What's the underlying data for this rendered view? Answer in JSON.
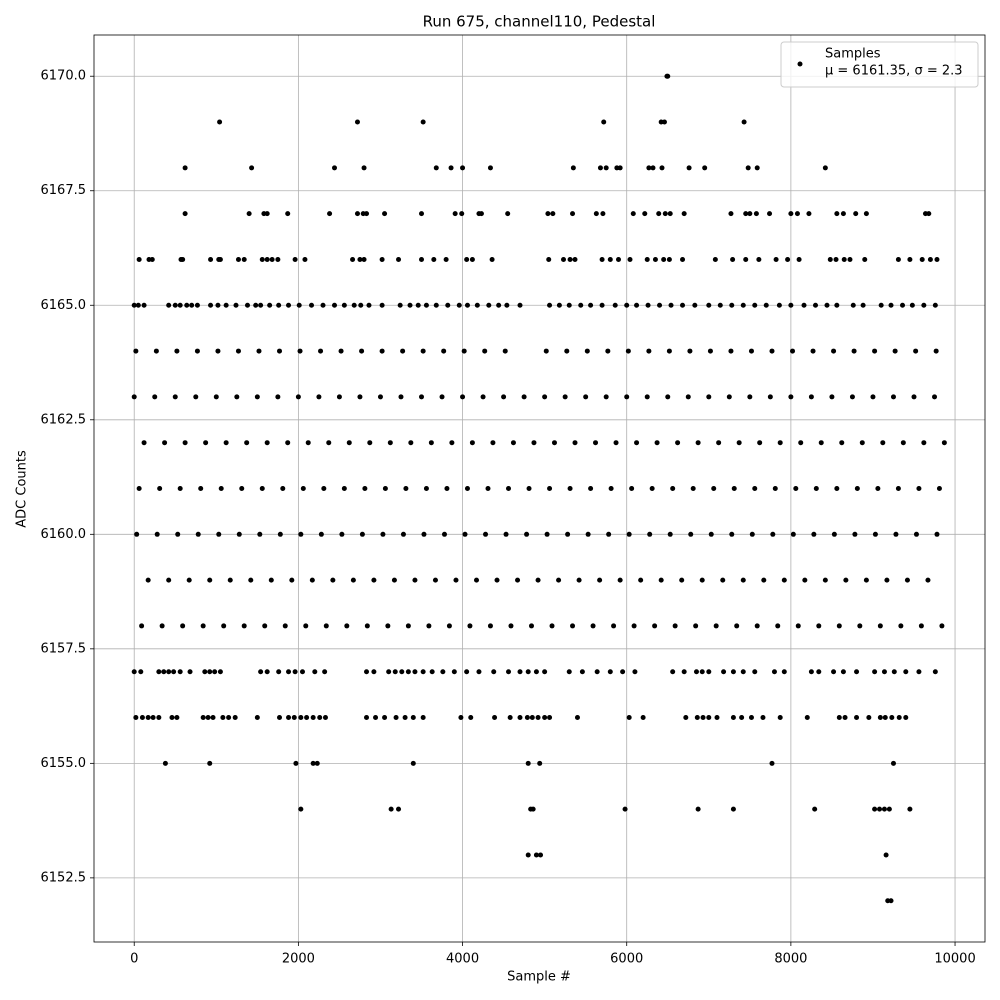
{
  "chart_data": {
    "type": "scatter",
    "title": "Run 675, channel110, Pedestal",
    "xlabel": "Sample #",
    "ylabel": "ADC Counts",
    "annotation": "μ = 6161.35, σ = 2.3",
    "legend": "upper right",
    "grid": true,
    "xlim": [
      -490,
      10365
    ],
    "xticks": [
      0,
      2000,
      4000,
      6000,
      8000,
      10000
    ],
    "ylim": [
      6151.1,
      6170.9
    ],
    "yticks": [
      6152.5,
      {
        "value": 6155,
        "label": "6155.0"
      },
      6157.5,
      {
        "value": 6160,
        "label": "6160.0"
      },
      6162.5,
      {
        "value": 6165,
        "label": "6165.0"
      },
      6167.5,
      {
        "value": 6170,
        "label": "6170.0"
      }
    ],
    "x": [
      6490,
      6500,
      1040,
      2720,
      3520,
      5720,
      6420,
      6460,
      7430,
      620,
      1430,
      2440,
      2800,
      3680,
      3860,
      4000,
      4340,
      5350,
      5680,
      5750,
      5880,
      5920,
      6270,
      6320,
      6430,
      6760,
      6950,
      7480,
      7590,
      8420,
      620,
      1400,
      1580,
      1620,
      1870,
      2380,
      2720,
      2790,
      2830,
      3050,
      3500,
      3910,
      3990,
      4200,
      4230,
      4550,
      5040,
      5100,
      5340,
      5630,
      5710,
      6080,
      6220,
      6390,
      6470,
      6530,
      6700,
      7270,
      7450,
      7500,
      7580,
      7740,
      8000,
      8080,
      8220,
      8560,
      8640,
      8790,
      8920,
      9640,
      9680,
      60,
      180,
      220,
      570,
      590,
      930,
      1030,
      1050,
      1270,
      1340,
      1560,
      1620,
      1680,
      1750,
      1960,
      2080,
      2660,
      2750,
      2800,
      3020,
      3220,
      3500,
      3650,
      3800,
      4050,
      4120,
      4360,
      5050,
      5230,
      5310,
      5370,
      5700,
      5800,
      5900,
      6040,
      6250,
      6350,
      6450,
      6520,
      6680,
      7080,
      7290,
      7450,
      7610,
      7820,
      7960,
      8100,
      8480,
      8550,
      8650,
      8720,
      8900,
      9310,
      9450,
      9600,
      9700,
      9780,
      0,
      50,
      120,
      420,
      500,
      560,
      640,
      700,
      770,
      930,
      1020,
      1120,
      1240,
      1380,
      1480,
      1540,
      1650,
      1760,
      1880,
      2010,
      2160,
      2300,
      2440,
      2560,
      2680,
      2760,
      2860,
      3020,
      3240,
      3360,
      3460,
      3560,
      3680,
      3820,
      3960,
      4060,
      4180,
      4320,
      4440,
      4540,
      4700,
      5060,
      5180,
      5300,
      5440,
      5560,
      5700,
      5860,
      6000,
      6120,
      6260,
      6400,
      6540,
      6680,
      6830,
      7000,
      7140,
      7280,
      7420,
      7560,
      7700,
      7860,
      8000,
      8160,
      8300,
      8440,
      8560,
      8760,
      8880,
      9100,
      9220,
      9360,
      9480,
      9620,
      9760,
      20,
      270,
      520,
      770,
      1020,
      1270,
      1520,
      1770,
      2020,
      2270,
      2520,
      2770,
      3020,
      3270,
      3520,
      3770,
      4020,
      4270,
      4520,
      5020,
      5270,
      5520,
      5770,
      6020,
      6270,
      6520,
      6770,
      7020,
      7270,
      7520,
      7770,
      8020,
      8270,
      8520,
      8770,
      9020,
      9270,
      9520,
      9770,
      0,
      250,
      500,
      750,
      1000,
      1250,
      1500,
      1750,
      2000,
      2250,
      2500,
      2750,
      3000,
      3250,
      3500,
      3750,
      4000,
      4250,
      4500,
      4750,
      5000,
      5250,
      5500,
      5750,
      6000,
      6250,
      6500,
      6750,
      7000,
      7250,
      7500,
      7750,
      8000,
      8250,
      8500,
      8750,
      9000,
      9250,
      9500,
      9750,
      120,
      370,
      620,
      870,
      1120,
      1370,
      1620,
      1870,
      2120,
      2370,
      2620,
      2870,
      3120,
      3370,
      3620,
      3870,
      4120,
      4370,
      4620,
      4870,
      5120,
      5370,
      5620,
      5870,
      6120,
      6370,
      6620,
      6870,
      7120,
      7370,
      7620,
      7870,
      8120,
      8370,
      8620,
      8870,
      9120,
      9370,
      9620,
      9870,
      60,
      310,
      560,
      810,
      1060,
      1310,
      1560,
      1810,
      2060,
      2310,
      2560,
      2810,
      3060,
      3310,
      3560,
      3810,
      4060,
      4310,
      4560,
      4810,
      5060,
      5310,
      5560,
      5810,
      6060,
      6310,
      6560,
      6810,
      7060,
      7310,
      7560,
      7810,
      8060,
      8310,
      8560,
      8810,
      9060,
      9310,
      9560,
      9810,
      30,
      280,
      530,
      780,
      1030,
      1280,
      1530,
      1780,
      2030,
      2280,
      2530,
      2780,
      3030,
      3280,
      3530,
      3780,
      4030,
      4280,
      4530,
      4780,
      5030,
      5280,
      5530,
      5780,
      6030,
      6280,
      6530,
      6780,
      7030,
      7280,
      7530,
      7780,
      8030,
      8280,
      8530,
      8780,
      9030,
      9280,
      9530,
      9780,
      170,
      420,
      670,
      920,
      1170,
      1420,
      1670,
      1920,
      2170,
      2420,
      2670,
      2920,
      3170,
      3420,
      3670,
      3920,
      4170,
      4420,
      4670,
      4920,
      5170,
      5420,
      5670,
      5920,
      6170,
      6420,
      6670,
      6920,
      7170,
      7420,
      7670,
      7920,
      8170,
      8420,
      8670,
      8920,
      9170,
      9420,
      9670,
      90,
      340,
      590,
      840,
      1090,
      1340,
      1590,
      1840,
      2090,
      2340,
      2590,
      2840,
      3090,
      3340,
      3590,
      3840,
      4090,
      4340,
      4590,
      4840,
      5090,
      5340,
      5590,
      5840,
      6090,
      6340,
      6590,
      6840,
      7090,
      7340,
      7590,
      7840,
      8090,
      8340,
      8590,
      8840,
      9090,
      9340,
      9590,
      9840,
      0,
      80,
      300,
      360,
      420,
      480,
      560,
      680,
      860,
      920,
      980,
      1050,
      1540,
      1620,
      1760,
      1880,
      1960,
      2050,
      2200,
      2320,
      2830,
      2920,
      3100,
      3180,
      3260,
      3340,
      3420,
      3520,
      3630,
      3760,
      3900,
      4050,
      4200,
      4380,
      4560,
      4700,
      4800,
      4900,
      5000,
      5300,
      5460,
      5640,
      5800,
      5950,
      6100,
      6560,
      6700,
      6850,
      6920,
      7000,
      7180,
      7300,
      7420,
      7560,
      7800,
      7920,
      8250,
      8340,
      8520,
      8640,
      8800,
      9020,
      9140,
      9260,
      9400,
      9560,
      9760,
      20,
      100,
      170,
      230,
      300,
      460,
      520,
      840,
      900,
      960,
      1080,
      1150,
      1230,
      1500,
      1770,
      1880,
      1950,
      2030,
      2100,
      2180,
      2260,
      2330,
      2830,
      2940,
      3050,
      3190,
      3300,
      3400,
      3520,
      3980,
      4100,
      4390,
      4580,
      4700,
      4790,
      4850,
      4920,
      5000,
      5060,
      5400,
      6030,
      6200,
      6720,
      6860,
      6930,
      7000,
      7100,
      7300,
      7400,
      7520,
      7660,
      7870,
      8200,
      8590,
      8660,
      8800,
      8950,
      9090,
      9150,
      9230,
      9320,
      9400,
      380,
      920,
      1970,
      2180,
      2230,
      3400,
      4800,
      4940,
      7770,
      9250,
      2030,
      3130,
      3220,
      4830,
      4860,
      5980,
      6870,
      7300,
      8290,
      9020,
      9080,
      9140,
      9200,
      9450,
      4800,
      4900,
      4950,
      9160,
      9180,
      9220
    ],
    "series": [
      {
        "name": "Samples",
        "color": "#000000",
        "values": [
          6170,
          6170,
          6169,
          6169,
          6169,
          6169,
          6169,
          6169,
          6169,
          6168,
          6168,
          6168,
          6168,
          6168,
          6168,
          6168,
          6168,
          6168,
          6168,
          6168,
          6168,
          6168,
          6168,
          6168,
          6168,
          6168,
          6168,
          6168,
          6168,
          6168,
          6167,
          6167,
          6167,
          6167,
          6167,
          6167,
          6167,
          6167,
          6167,
          6167,
          6167,
          6167,
          6167,
          6167,
          6167,
          6167,
          6167,
          6167,
          6167,
          6167,
          6167,
          6167,
          6167,
          6167,
          6167,
          6167,
          6167,
          6167,
          6167,
          6167,
          6167,
          6167,
          6167,
          6167,
          6167,
          6167,
          6167,
          6167,
          6167,
          6167,
          6167,
          6166,
          6166,
          6166,
          6166,
          6166,
          6166,
          6166,
          6166,
          6166,
          6166,
          6166,
          6166,
          6166,
          6166,
          6166,
          6166,
          6166,
          6166,
          6166,
          6166,
          6166,
          6166,
          6166,
          6166,
          6166,
          6166,
          6166,
          6166,
          6166,
          6166,
          6166,
          6166,
          6166,
          6166,
          6166,
          6166,
          6166,
          6166,
          6166,
          6166,
          6166,
          6166,
          6166,
          6166,
          6166,
          6166,
          6166,
          6166,
          6166,
          6166,
          6166,
          6166,
          6166,
          6166,
          6166,
          6166,
          6166,
          6165,
          6165,
          6165,
          6165,
          6165,
          6165,
          6165,
          6165,
          6165,
          6165,
          6165,
          6165,
          6165,
          6165,
          6165,
          6165,
          6165,
          6165,
          6165,
          6165,
          6165,
          6165,
          6165,
          6165,
          6165,
          6165,
          6165,
          6165,
          6165,
          6165,
          6165,
          6165,
          6165,
          6165,
          6165,
          6165,
          6165,
          6165,
          6165,
          6165,
          6165,
          6165,
          6165,
          6165,
          6165,
          6165,
          6165,
          6165,
          6165,
          6165,
          6165,
          6165,
          6165,
          6165,
          6165,
          6165,
          6165,
          6165,
          6165,
          6165,
          6165,
          6165,
          6165,
          6165,
          6165,
          6165,
          6165,
          6165,
          6165,
          6165,
          6165,
          6165,
          6165,
          6165,
          6165,
          6164,
          6164,
          6164,
          6164,
          6164,
          6164,
          6164,
          6164,
          6164,
          6164,
          6164,
          6164,
          6164,
          6164,
          6164,
          6164,
          6164,
          6164,
          6164,
          6164,
          6164,
          6164,
          6164,
          6164,
          6164,
          6164,
          6164,
          6164,
          6164,
          6164,
          6164,
          6164,
          6164,
          6164,
          6164,
          6164,
          6164,
          6164,
          6164,
          6163,
          6163,
          6163,
          6163,
          6163,
          6163,
          6163,
          6163,
          6163,
          6163,
          6163,
          6163,
          6163,
          6163,
          6163,
          6163,
          6163,
          6163,
          6163,
          6163,
          6163,
          6163,
          6163,
          6163,
          6163,
          6163,
          6163,
          6163,
          6163,
          6163,
          6163,
          6163,
          6163,
          6163,
          6163,
          6163,
          6163,
          6163,
          6163,
          6163,
          6162,
          6162,
          6162,
          6162,
          6162,
          6162,
          6162,
          6162,
          6162,
          6162,
          6162,
          6162,
          6162,
          6162,
          6162,
          6162,
          6162,
          6162,
          6162,
          6162,
          6162,
          6162,
          6162,
          6162,
          6162,
          6162,
          6162,
          6162,
          6162,
          6162,
          6162,
          6162,
          6162,
          6162,
          6162,
          6162,
          6162,
          6162,
          6162,
          6162,
          6161,
          6161,
          6161,
          6161,
          6161,
          6161,
          6161,
          6161,
          6161,
          6161,
          6161,
          6161,
          6161,
          6161,
          6161,
          6161,
          6161,
          6161,
          6161,
          6161,
          6161,
          6161,
          6161,
          6161,
          6161,
          6161,
          6161,
          6161,
          6161,
          6161,
          6161,
          6161,
          6161,
          6161,
          6161,
          6161,
          6161,
          6161,
          6161,
          6161,
          6160,
          6160,
          6160,
          6160,
          6160,
          6160,
          6160,
          6160,
          6160,
          6160,
          6160,
          6160,
          6160,
          6160,
          6160,
          6160,
          6160,
          6160,
          6160,
          6160,
          6160,
          6160,
          6160,
          6160,
          6160,
          6160,
          6160,
          6160,
          6160,
          6160,
          6160,
          6160,
          6160,
          6160,
          6160,
          6160,
          6160,
          6160,
          6160,
          6160,
          6159,
          6159,
          6159,
          6159,
          6159,
          6159,
          6159,
          6159,
          6159,
          6159,
          6159,
          6159,
          6159,
          6159,
          6159,
          6159,
          6159,
          6159,
          6159,
          6159,
          6159,
          6159,
          6159,
          6159,
          6159,
          6159,
          6159,
          6159,
          6159,
          6159,
          6159,
          6159,
          6159,
          6159,
          6159,
          6159,
          6159,
          6159,
          6159,
          6158,
          6158,
          6158,
          6158,
          6158,
          6158,
          6158,
          6158,
          6158,
          6158,
          6158,
          6158,
          6158,
          6158,
          6158,
          6158,
          6158,
          6158,
          6158,
          6158,
          6158,
          6158,
          6158,
          6158,
          6158,
          6158,
          6158,
          6158,
          6158,
          6158,
          6158,
          6158,
          6158,
          6158,
          6158,
          6158,
          6158,
          6158,
          6158,
          6158,
          6157,
          6157,
          6157,
          6157,
          6157,
          6157,
          6157,
          6157,
          6157,
          6157,
          6157,
          6157,
          6157,
          6157,
          6157,
          6157,
          6157,
          6157,
          6157,
          6157,
          6157,
          6157,
          6157,
          6157,
          6157,
          6157,
          6157,
          6157,
          6157,
          6157,
          6157,
          6157,
          6157,
          6157,
          6157,
          6157,
          6157,
          6157,
          6157,
          6157,
          6157,
          6157,
          6157,
          6157,
          6157,
          6157,
          6157,
          6157,
          6157,
          6157,
          6157,
          6157,
          6157,
          6157,
          6157,
          6157,
          6157,
          6157,
          6157,
          6157,
          6157,
          6157,
          6157,
          6157,
          6157,
          6157,
          6157,
          6156,
          6156,
          6156,
          6156,
          6156,
          6156,
          6156,
          6156,
          6156,
          6156,
          6156,
          6156,
          6156,
          6156,
          6156,
          6156,
          6156,
          6156,
          6156,
          6156,
          6156,
          6156,
          6156,
          6156,
          6156,
          6156,
          6156,
          6156,
          6156,
          6156,
          6156,
          6156,
          6156,
          6156,
          6156,
          6156,
          6156,
          6156,
          6156,
          6156,
          6156,
          6156,
          6156,
          6156,
          6156,
          6156,
          6156,
          6156,
          6156,
          6156,
          6156,
          6156,
          6156,
          6156,
          6156,
          6156,
          6156,
          6156,
          6156,
          6156,
          6156,
          6156,
          6155,
          6155,
          6155,
          6155,
          6155,
          6155,
          6155,
          6155,
          6155,
          6155,
          6154,
          6154,
          6154,
          6154,
          6154,
          6154,
          6154,
          6154,
          6154,
          6154,
          6154,
          6154,
          6154,
          6154,
          6153,
          6153,
          6153,
          6153,
          6152,
          6152
        ]
      }
    ]
  }
}
